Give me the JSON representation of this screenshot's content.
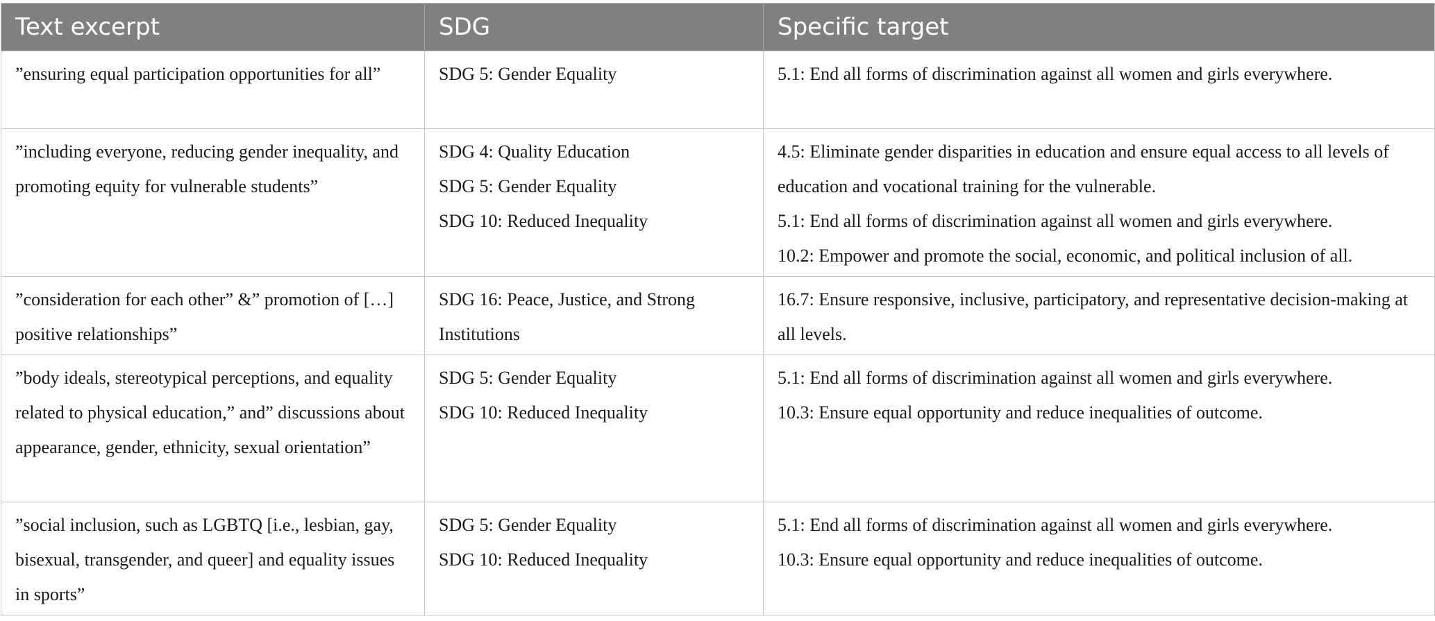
{
  "table": {
    "headers": [
      "Text excerpt",
      "SDG",
      "Specific target"
    ],
    "rows": [
      {
        "excerpt": "”ensuring equal participation opportunities for all”",
        "sdgs": [
          "SDG 5: Gender Equality"
        ],
        "targets": [
          "5.1: End all forms of discrimination against all women and girls everywhere."
        ]
      },
      {
        "excerpt": "”including everyone, reducing gender inequality, and promoting equity for vulnerable students”",
        "sdgs": [
          "SDG 4: Quality Education",
          "SDG 5: Gender Equality",
          "SDG 10: Reduced Inequality"
        ],
        "targets": [
          "4.5: Eliminate gender disparities in education and ensure equal access to all levels of education and vocational training for the vulnerable.",
          "5.1: End all forms of discrimination against all women and girls everywhere.",
          "10.2: Empower and promote the social, economic, and political inclusion of all."
        ]
      },
      {
        "excerpt": "”consideration for each other” &” promotion of […] positive relationships”",
        "sdgs": [
          "SDG 16: Peace, Justice, and Strong Institutions"
        ],
        "targets": [
          "16.7: Ensure responsive, inclusive, participatory, and representative decision-making at all levels."
        ]
      },
      {
        "excerpt": "”body ideals, stereotypical perceptions, and equality related to physical education,” and” discussions about appearance, gender, ethnicity, sexual orientation”",
        "sdgs": [
          "SDG 5: Gender Equality",
          "SDG 10: Reduced Inequality"
        ],
        "targets": [
          "5.1: End all forms of discrimination against all women and girls everywhere.",
          "10.3: Ensure equal opportunity and reduce inequalities of outcome."
        ]
      },
      {
        "excerpt": "”social inclusion, such as LGBTQ [i.e., lesbian, gay, bisexual, transgender, and queer] and equality issues in sports”",
        "sdgs": [
          "SDG 5: Gender Equality",
          "SDG 10: Reduced Inequality"
        ],
        "targets": [
          "5.1: End all forms of discrimination against all women and girls everywhere.",
          "10.3: Ensure equal opportunity and reduce inequalities of outcome."
        ]
      }
    ]
  }
}
